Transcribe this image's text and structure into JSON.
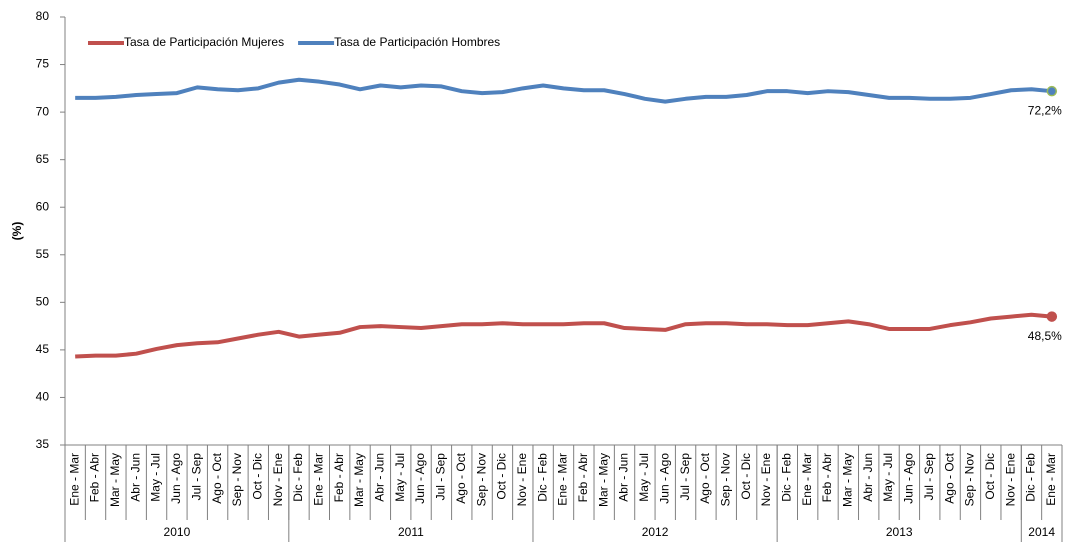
{
  "chart_data": {
    "type": "line",
    "y_axis_label": "(%)",
    "ylim": [
      35,
      80
    ],
    "yticks": [
      35,
      40,
      45,
      50,
      55,
      60,
      65,
      70,
      75,
      80
    ],
    "grid": false,
    "legend": "top-left",
    "category_groups": [
      {
        "name": "2010",
        "categories": [
          "Ene - Mar",
          "Feb - Abr",
          "Mar - May",
          "Abr - Jun",
          "May - Jul",
          "Jun - Ago",
          "Jul - Sep",
          "Ago - Oct",
          "Sep - Nov",
          "Oct - Dic",
          "Nov - Ene"
        ]
      },
      {
        "name": "2011",
        "categories": [
          "Dic - Feb",
          "Ene - Mar",
          "Feb - Abr",
          "Mar - May",
          "Abr - Jun",
          "May - Jul",
          "Jun - Ago",
          "Jul - Sep",
          "Ago - Oct",
          "Sep - Nov",
          "Oct - Dic",
          "Nov - Ene"
        ]
      },
      {
        "name": "2012",
        "categories": [
          "Dic - Feb",
          "Ene - Mar",
          "Feb - Abr",
          "Mar - May",
          "Abr - Jun",
          "May - Jul",
          "Jun - Ago",
          "Jul - Sep",
          "Ago - Oct",
          "Sep - Nov",
          "Oct - Dic",
          "Nov - Ene"
        ]
      },
      {
        "name": "2013",
        "categories": [
          "Dic - Feb",
          "Ene - Mar",
          "Feb - Abr",
          "Mar - May",
          "Abr - Jun",
          "May - Jul",
          "Jun - Ago",
          "Jul - Sep",
          "Ago - Oct",
          "Sep - Nov",
          "Oct - Dic",
          "Nov - Ene"
        ]
      },
      {
        "name": "2014",
        "categories": [
          "Dic - Feb",
          "Ene - Mar"
        ]
      }
    ],
    "series": [
      {
        "name": "Tasa de Participación Mujeres",
        "color": "#c0504d",
        "values": [
          44.3,
          44.4,
          44.4,
          44.6,
          45.1,
          45.5,
          45.7,
          45.8,
          46.2,
          46.6,
          46.9,
          46.4,
          46.6,
          46.8,
          47.4,
          47.5,
          47.4,
          47.3,
          47.5,
          47.7,
          47.7,
          47.8,
          47.7,
          47.7,
          47.7,
          47.8,
          47.8,
          47.3,
          47.2,
          47.1,
          47.7,
          47.8,
          47.8,
          47.7,
          47.7,
          47.6,
          47.6,
          47.8,
          48.0,
          47.7,
          47.2,
          47.2,
          47.2,
          47.6,
          47.9,
          48.3,
          48.5,
          48.7,
          48.5
        ],
        "value_labels": [
          null,
          null,
          null,
          null,
          null,
          null,
          null,
          null,
          null,
          null,
          null,
          null,
          null,
          null,
          null,
          null,
          null,
          null,
          null,
          null,
          null,
          null,
          null,
          null,
          null,
          null,
          null,
          null,
          null,
          null,
          null,
          null,
          null,
          null,
          null,
          null,
          null,
          null,
          null,
          null,
          null,
          null,
          null,
          null,
          null,
          null,
          null,
          null,
          "48,5%"
        ]
      },
      {
        "name": "Tasa de Participación Hombres",
        "color": "#4f81bd",
        "values": [
          71.5,
          71.5,
          71.6,
          71.8,
          71.9,
          72.0,
          72.6,
          72.4,
          72.3,
          72.5,
          73.1,
          73.4,
          73.2,
          72.9,
          72.4,
          72.8,
          72.6,
          72.8,
          72.7,
          72.2,
          72.0,
          72.1,
          72.5,
          72.8,
          72.5,
          72.3,
          72.3,
          71.9,
          71.4,
          71.1,
          71.4,
          71.6,
          71.6,
          71.8,
          72.2,
          72.2,
          72.0,
          72.2,
          72.1,
          71.8,
          71.5,
          71.5,
          71.4,
          71.4,
          71.5,
          71.9,
          72.3,
          72.4,
          72.2
        ],
        "value_labels": [
          null,
          null,
          null,
          null,
          null,
          null,
          null,
          null,
          null,
          null,
          null,
          null,
          null,
          null,
          null,
          null,
          null,
          null,
          null,
          null,
          null,
          null,
          null,
          null,
          null,
          null,
          null,
          null,
          null,
          null,
          null,
          null,
          null,
          null,
          null,
          null,
          null,
          null,
          null,
          null,
          null,
          null,
          null,
          null,
          null,
          null,
          null,
          null,
          "72,2%"
        ]
      }
    ]
  }
}
